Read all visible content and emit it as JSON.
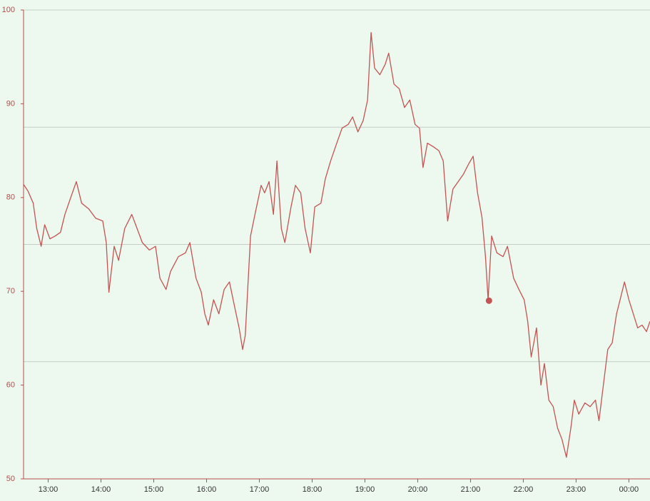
{
  "chart_data": {
    "type": "line",
    "x": [
      "12:32",
      "12:37",
      "12:43",
      "12:47",
      "12:52",
      "12:56",
      "13:02",
      "13:08",
      "13:14",
      "13:19",
      "13:26",
      "13:32",
      "13:38",
      "13:46",
      "13:54",
      "14:02",
      "14:06",
      "14:09",
      "14:15",
      "14:20",
      "14:27",
      "14:35",
      "14:41",
      "14:47",
      "14:55",
      "15:02",
      "15:07",
      "15:14",
      "15:19",
      "15:28",
      "15:36",
      "15:41",
      "15:48",
      "15:54",
      "15:58",
      "16:02",
      "16:08",
      "16:14",
      "16:20",
      "16:26",
      "16:32",
      "16:37",
      "16:41",
      "16:44",
      "16:47",
      "16:50",
      "16:55",
      "17:02",
      "17:06",
      "17:11",
      "17:16",
      "17:20",
      "17:25",
      "17:29",
      "17:36",
      "17:41",
      "17:47",
      "17:52",
      "17:58",
      "18:03",
      "18:10",
      "18:15",
      "18:21",
      "18:28",
      "18:34",
      "18:41",
      "18:46",
      "18:52",
      "18:58",
      "19:03",
      "19:07",
      "19:11",
      "19:17",
      "19:23",
      "19:27",
      "19:33",
      "19:39",
      "19:45",
      "19:51",
      "19:57",
      "20:02",
      "20:06",
      "20:11",
      "20:18",
      "20:24",
      "20:29",
      "20:34",
      "20:40",
      "20:46",
      "20:52",
      "20:58",
      "21:03",
      "21:08",
      "21:13",
      "21:17",
      "21:20",
      "21:24",
      "21:30",
      "21:37",
      "21:42",
      "21:49",
      "21:55",
      "22:01",
      "22:05",
      "22:09",
      "22:15",
      "22:20",
      "22:24",
      "22:29",
      "22:34",
      "22:39",
      "22:44",
      "22:49",
      "22:54",
      "22:58",
      "23:03",
      "23:10",
      "23:16",
      "23:22",
      "23:26",
      "23:31",
      "23:36",
      "23:41",
      "23:46",
      "23:50",
      "23:55",
      "00:00",
      "00:05",
      "00:10",
      "00:15",
      "00:20",
      "00:24"
    ],
    "series": [
      {
        "color": "#c45353",
        "values": [
          81.4,
          80.7,
          79.4,
          76.7,
          74.8,
          77.1,
          75.6,
          75.9,
          76.3,
          78.2,
          80.1,
          81.7,
          79.4,
          78.8,
          77.8,
          77.5,
          75.2,
          69.9,
          74.8,
          73.3,
          76.7,
          78.2,
          76.7,
          75.2,
          74.4,
          74.8,
          71.4,
          70.2,
          72.1,
          73.7,
          74.1,
          75.2,
          71.4,
          69.9,
          67.6,
          66.4,
          69.1,
          67.6,
          70.2,
          71.0,
          68.3,
          66.1,
          63.8,
          65.3,
          70.6,
          75.9,
          78.2,
          81.3,
          80.5,
          81.7,
          78.2,
          83.9,
          76.7,
          75.2,
          79.0,
          81.3,
          80.5,
          76.7,
          74.1,
          79.0,
          79.4,
          82.0,
          83.9,
          85.8,
          87.4,
          87.8,
          88.6,
          87.0,
          88.2,
          90.4,
          97.6,
          93.8,
          93.1,
          94.2,
          95.4,
          92.1,
          91.6,
          89.6,
          90.4,
          87.8,
          87.4,
          83.2,
          85.8,
          85.4,
          85.0,
          83.9,
          77.5,
          80.9,
          81.7,
          82.5,
          83.6,
          84.4,
          80.5,
          77.9,
          73.7,
          69.1,
          75.9,
          74.1,
          73.7,
          74.8,
          71.4,
          70.2,
          69.1,
          66.8,
          63.0,
          66.1,
          60.0,
          62.3,
          58.4,
          57.7,
          55.4,
          54.2,
          52.3,
          55.4,
          58.4,
          56.9,
          58.1,
          57.7,
          58.4,
          56.2,
          60.0,
          63.8,
          64.5,
          67.6,
          69.1,
          71.0,
          69.1,
          67.6,
          66.1,
          66.4,
          65.7,
          66.8
        ]
      }
    ],
    "marker": {
      "x": "21:21",
      "value": 69
    },
    "xlim": [
      "12:32",
      "00:24"
    ],
    "xticks": [
      "13:00",
      "14:00",
      "15:00",
      "16:00",
      "17:00",
      "18:00",
      "19:00",
      "20:00",
      "21:00",
      "22:00",
      "23:00",
      "00:00"
    ],
    "ylim": [
      50,
      100
    ],
    "yticks": [
      50,
      60,
      70,
      80,
      90,
      100
    ],
    "grid_lines": [
      62.5,
      75,
      87.5,
      100
    ],
    "grid": true
  }
}
